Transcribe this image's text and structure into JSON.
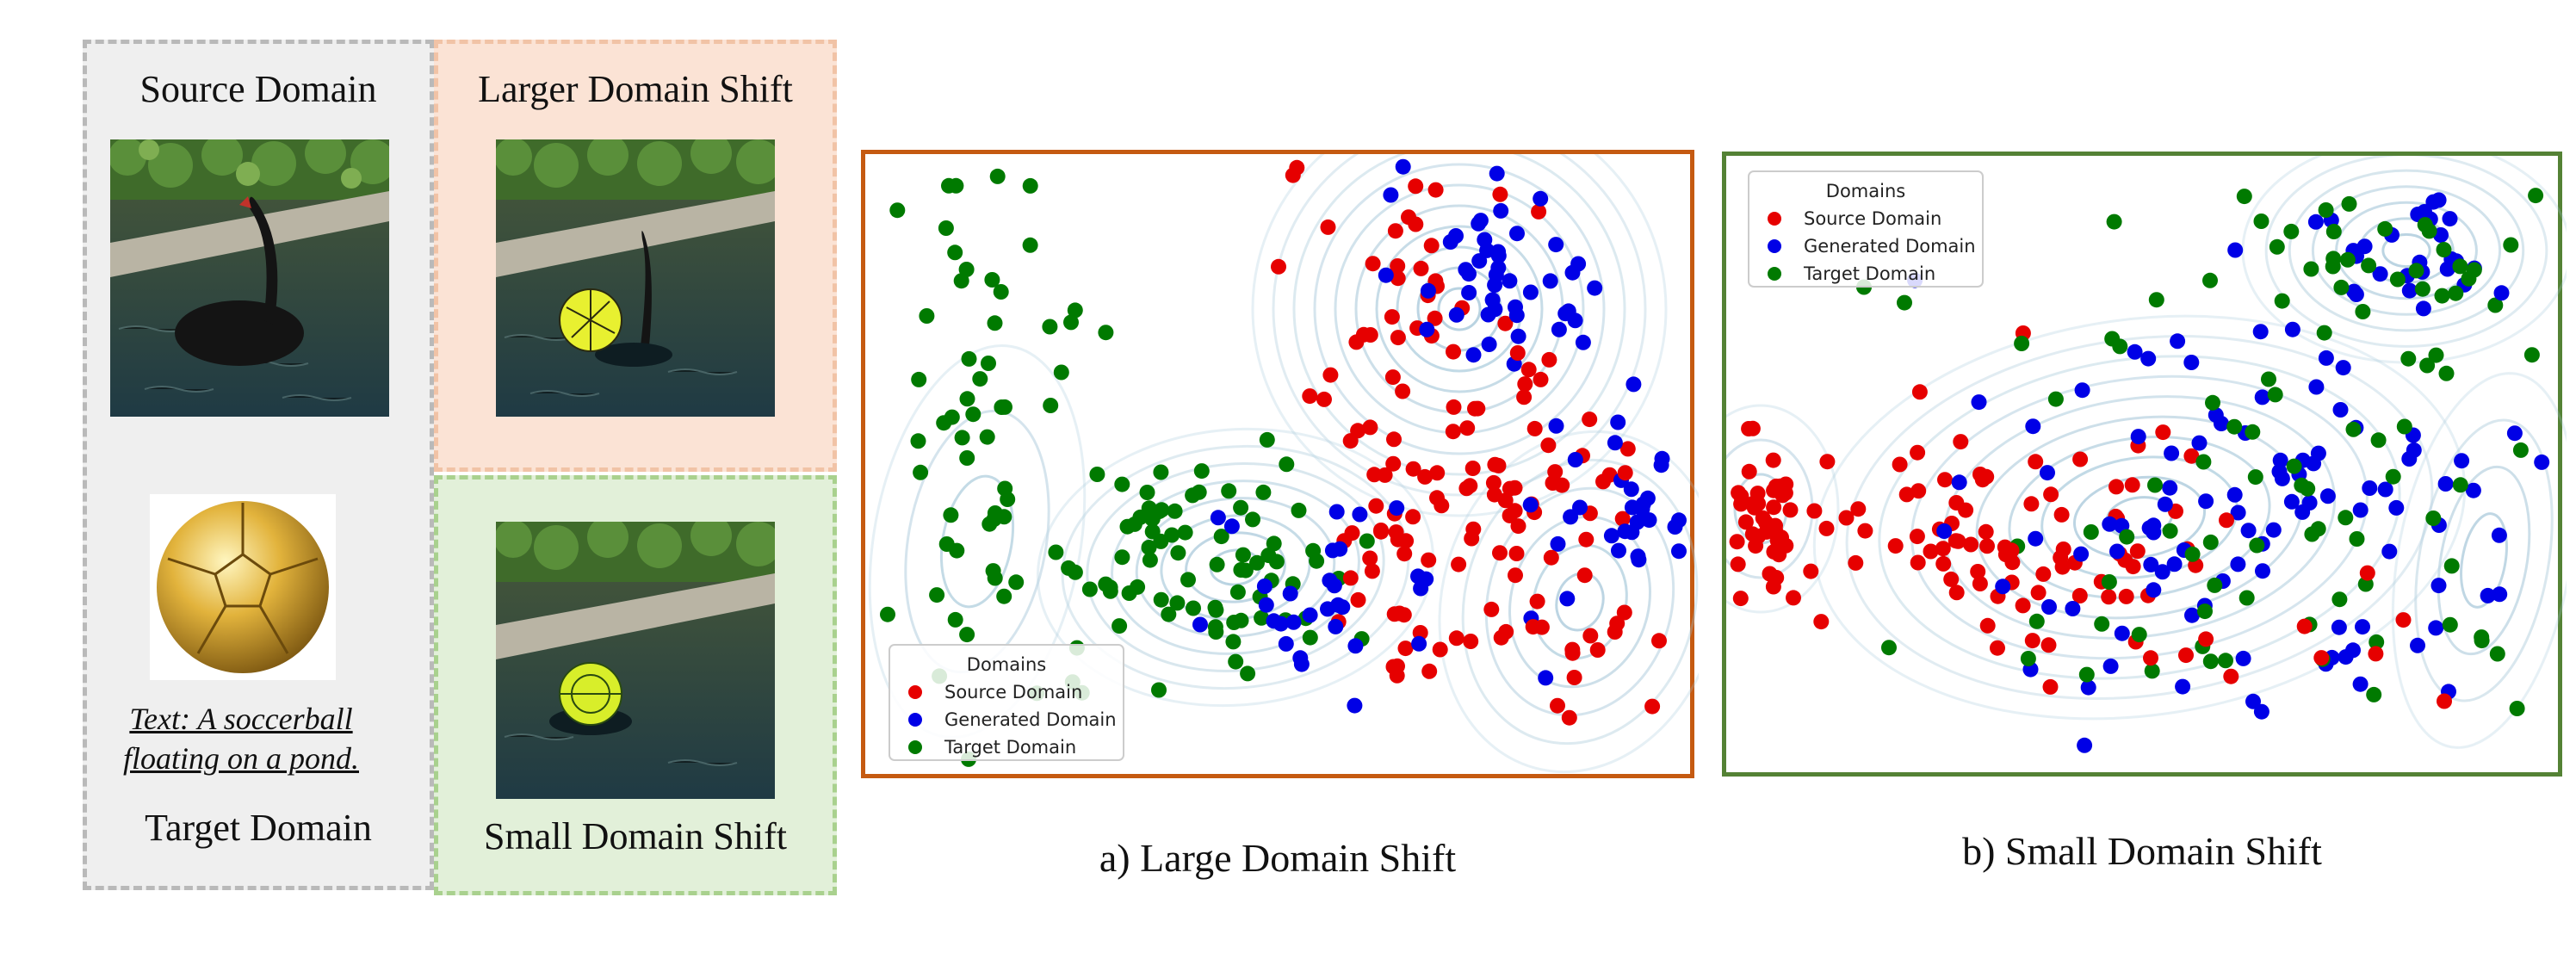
{
  "left_panel": {
    "source_title": "Source Domain",
    "target_title": "Target Domain",
    "target_prompt_line1": "Text: A soccerball",
    "target_prompt_line2": "floating on a pond.",
    "larger_shift_title": "Larger Domain Shift",
    "small_shift_title": "Small Domain Shift"
  },
  "plots": [
    {
      "caption": "a) Large Domain Shift",
      "border_color": "#c55a11",
      "legend_title": "Domains",
      "legend_position": "bottom-left",
      "legend_items": [
        {
          "label": "Source Domain",
          "color": "#e60000"
        },
        {
          "label": "Generated Domain",
          "color": "#0000e6"
        },
        {
          "label": "Target Domain",
          "color": "#007a00"
        }
      ]
    },
    {
      "caption": "b) Small Domain Shift",
      "border_color": "#548235",
      "legend_title": "Domains",
      "legend_position": "top-left",
      "legend_items": [
        {
          "label": "Source Domain",
          "color": "#e60000"
        },
        {
          "label": "Generated Domain",
          "color": "#0000e6"
        },
        {
          "label": "Target Domain",
          "color": "#007a00"
        }
      ]
    }
  ],
  "colors": {
    "source": "#e60000",
    "generated": "#0000e6",
    "target": "#007a00",
    "contour": "#9fc3d6"
  }
}
